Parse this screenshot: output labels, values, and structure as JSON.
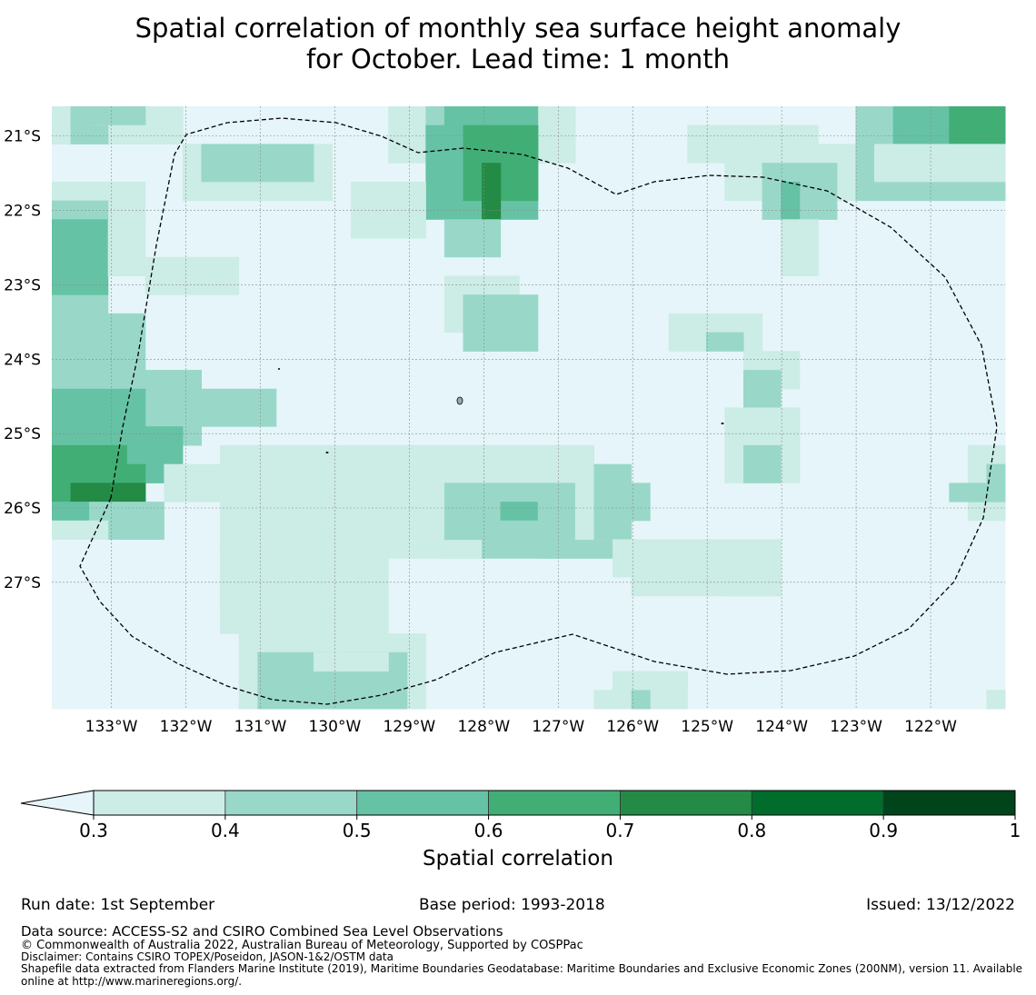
{
  "title": {
    "line1": "Spatial correlation of monthly sea surface height anomaly",
    "line2": "for October. Lead time: 1 month"
  },
  "map": {
    "lon_labels": [
      "133°W",
      "132°W",
      "131°W",
      "130°W",
      "129°W",
      "128°W",
      "127°W",
      "126°W",
      "125°W",
      "124°W",
      "123°W",
      "122°W"
    ],
    "lat_labels": [
      "21°S",
      "22°S",
      "23°S",
      "24°S",
      "25°S",
      "26°S",
      "27°S"
    ],
    "lon_values": [
      -133,
      -132,
      -131,
      -130,
      -129,
      -128,
      -127,
      -126,
      -125,
      -124,
      -123,
      -122
    ],
    "lat_values": [
      -21,
      -22,
      -23,
      -24,
      -25,
      -26,
      -27
    ],
    "extent": {
      "lon_min": -133.8,
      "lon_max": -121.0,
      "lat_max": -20.6,
      "lat_min": -28.7
    },
    "colors": {
      "ocean_below": "#e5f5f9",
      "bins": [
        "#ccece6",
        "#99d8c9",
        "#66c2a4",
        "#41ae76",
        "#238b45",
        "#006d2c",
        "#00441b"
      ],
      "grid": "#8a8a8a",
      "boundary": "#000000"
    }
  },
  "colorbar": {
    "ticks": [
      "0.3",
      "0.4",
      "0.5",
      "0.6",
      "0.7",
      "0.8",
      "0.9",
      "1"
    ],
    "label": "Spatial correlation"
  },
  "footer": {
    "run_date": "Run date: 1st September",
    "base_period": "Base period: 1993-2018",
    "issued": "Issued: 13/12/2022",
    "data_source": "Data source: ACCESS-S2 and CSIRO Combined Sea Level Observations",
    "copyright": "© Commonwealth of Australia 2022, Australian Bureau of Meteorology, Supported by COSPPac",
    "disclaimer": "Disclaimer: Contains CSIRO TOPEX/Poseidon, JASON-1&2/OSTM data",
    "shapefile_line1": "Shapefile data extracted from Flanders Marine Institute (2019), Maritime Boundaries Geodatabase: Maritime Boundaries and Exclusive Economic Zones (200NM), version 11. Available",
    "shapefile_line2": "online at http://www.marineregions.org/."
  }
}
